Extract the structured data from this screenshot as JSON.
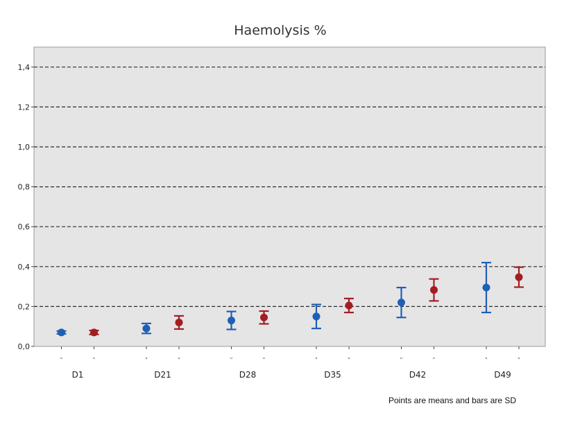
{
  "chart_data": {
    "type": "scatter",
    "title": "Haemolysis %",
    "ylim": [
      0,
      1.5
    ],
    "yticks": [
      "0,0",
      "0,2",
      "0,4",
      "0,6",
      "0,8",
      "1,0",
      "1,2",
      "1,4"
    ],
    "ytick_values": [
      0,
      0.2,
      0.4,
      0.6,
      0.8,
      1.0,
      1.2,
      1.4
    ],
    "grid": "horizontal-dashed",
    "categories": [
      "D1",
      "D21",
      "D28",
      "D35",
      "D42",
      "D49"
    ],
    "group_sublabel": "\"",
    "series": [
      {
        "color": "#1f5fb4",
        "means": [
          0.07,
          0.09,
          0.13,
          0.15,
          0.22,
          0.295
        ],
        "sd": [
          0.007,
          0.025,
          0.045,
          0.06,
          0.075,
          0.125
        ]
      },
      {
        "color": "#a31d22",
        "means": [
          0.07,
          0.12,
          0.145,
          0.205,
          0.283,
          0.347
        ],
        "sd": [
          0.01,
          0.033,
          0.032,
          0.035,
          0.055,
          0.05
        ]
      }
    ],
    "footnote": "Points are means and bars are SD"
  }
}
